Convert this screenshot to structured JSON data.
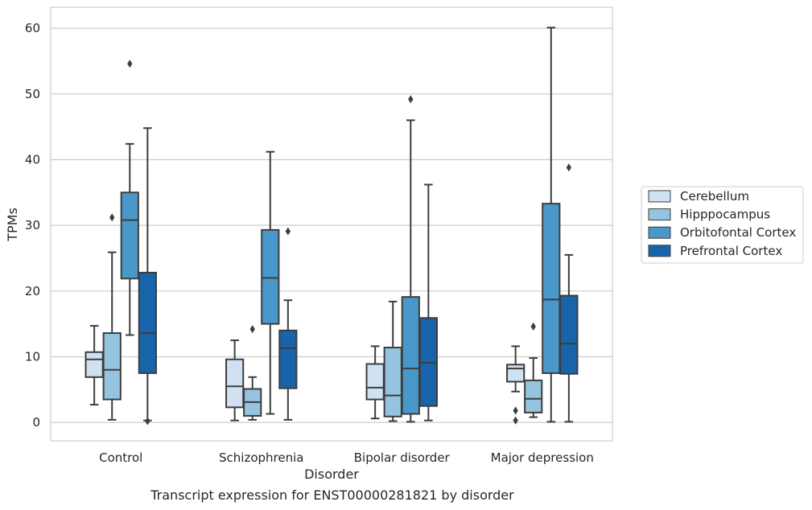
{
  "caption": "Transcript expression for ENST00000281821 by disorder",
  "chart_data": {
    "type": "box",
    "title": "",
    "xlabel": "Disorder",
    "ylabel": "TPMs",
    "ylim": [
      -2.8,
      63.2
    ],
    "yticks": [
      0,
      10,
      20,
      30,
      40,
      50,
      60
    ],
    "categories": [
      "Control",
      "Schizophrenia",
      "Bipolar disorder",
      "Major depression"
    ],
    "grid": "horizontal",
    "legend_position": "right-outside",
    "series": [
      {
        "name": "Cerebellum",
        "color": "#d0e1f2",
        "boxes": [
          {
            "whislo": 2.7,
            "q1": 6.9,
            "med": 9.6,
            "q3": 10.7,
            "whishi": 14.7,
            "fliers": []
          },
          {
            "whislo": 0.3,
            "q1": 2.3,
            "med": 5.5,
            "q3": 9.6,
            "whishi": 12.5,
            "fliers": []
          },
          {
            "whislo": 0.6,
            "q1": 3.5,
            "med": 5.3,
            "q3": 8.9,
            "whishi": 11.6,
            "fliers": []
          },
          {
            "whislo": 4.7,
            "q1": 6.2,
            "med": 8.2,
            "q3": 8.8,
            "whishi": 11.6,
            "fliers": [
              1.8,
              0.3
            ]
          }
        ]
      },
      {
        "name": "Hipppocampus",
        "color": "#94c4df",
        "boxes": [
          {
            "whislo": 0.4,
            "q1": 3.5,
            "med": 8.0,
            "q3": 13.6,
            "whishi": 25.9,
            "fliers": [
              31.2
            ]
          },
          {
            "whislo": 0.4,
            "q1": 1.0,
            "med": 3.1,
            "q3": 5.1,
            "whishi": 6.9,
            "fliers": [
              14.2
            ]
          },
          {
            "whislo": 0.2,
            "q1": 0.9,
            "med": 4.1,
            "q3": 11.4,
            "whishi": 18.4,
            "fliers": []
          },
          {
            "whislo": 0.8,
            "q1": 1.5,
            "med": 3.6,
            "q3": 6.4,
            "whishi": 9.8,
            "fliers": [
              14.6
            ]
          }
        ]
      },
      {
        "name": "Orbitofontal Cortex",
        "color": "#4a98c9",
        "boxes": [
          {
            "whislo": 13.3,
            "q1": 21.9,
            "med": 30.8,
            "q3": 35.0,
            "whishi": 42.4,
            "fliers": [
              54.6
            ]
          },
          {
            "whislo": 1.3,
            "q1": 15.0,
            "med": 22.0,
            "q3": 29.3,
            "whishi": 41.2,
            "fliers": []
          },
          {
            "whislo": 0.1,
            "q1": 1.3,
            "med": 8.2,
            "q3": 19.1,
            "whishi": 46.0,
            "fliers": [
              49.2
            ]
          },
          {
            "whislo": 0.1,
            "q1": 7.5,
            "med": 18.7,
            "q3": 33.3,
            "whishi": 60.1,
            "fliers": []
          }
        ]
      },
      {
        "name": "Prefrontal Cortex",
        "color": "#1764ab",
        "boxes": [
          {
            "whislo": 0.3,
            "q1": 7.5,
            "med": 13.6,
            "q3": 22.8,
            "whishi": 44.8,
            "fliers": [
              0.2
            ]
          },
          {
            "whislo": 0.4,
            "q1": 5.2,
            "med": 11.3,
            "q3": 14.0,
            "whishi": 18.6,
            "fliers": [
              29.1
            ]
          },
          {
            "whislo": 0.3,
            "q1": 2.5,
            "med": 9.1,
            "q3": 15.9,
            "whishi": 36.2,
            "fliers": []
          },
          {
            "whislo": 0.1,
            "q1": 7.4,
            "med": 12.0,
            "q3": 19.3,
            "whishi": 25.5,
            "fliers": [
              38.8
            ]
          }
        ]
      }
    ]
  }
}
